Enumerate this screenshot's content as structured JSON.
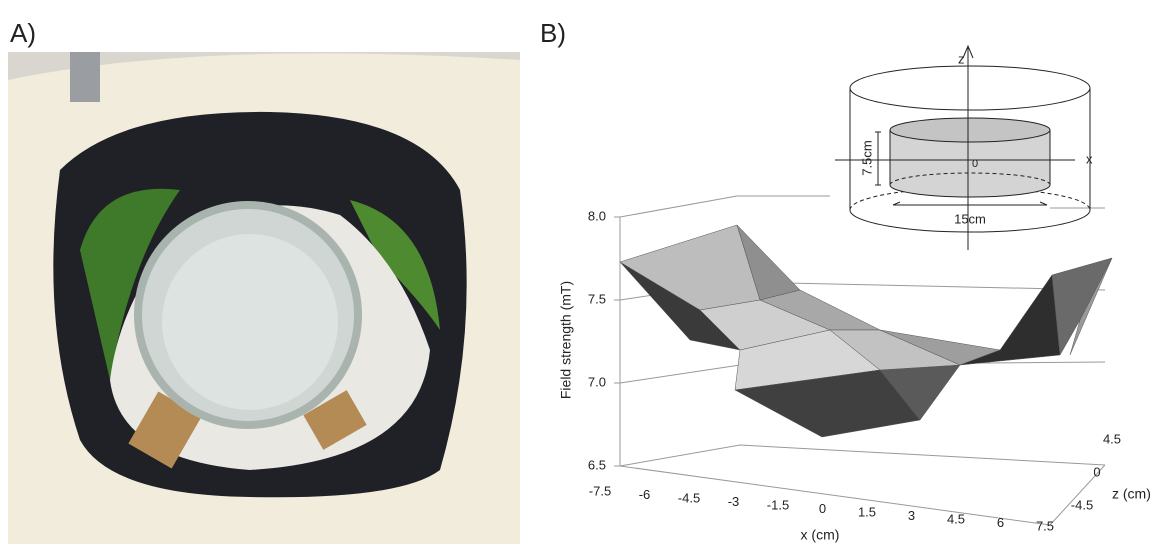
{
  "panel_a": {
    "label": "A)"
  },
  "panel_b": {
    "label": "B)",
    "y_axis": {
      "title": "Field strength (mT)",
      "ticks": [
        "8.0",
        "7.5",
        "7.0",
        "6.5"
      ]
    },
    "x_axis": {
      "title": "x (cm)",
      "ticks": [
        "-7.5",
        "-6",
        "-4.5",
        "-3",
        "-1.5",
        "0",
        "1.5",
        "3",
        "4.5",
        "6",
        "7.5"
      ]
    },
    "z_axis": {
      "title": "z (cm)",
      "ticks": [
        "4.5",
        "0",
        "-4.5"
      ]
    },
    "inset": {
      "z_label": "z",
      "x_label": "x",
      "origin": "0",
      "height": "7.5cm",
      "diameter": "15cm"
    }
  }
}
